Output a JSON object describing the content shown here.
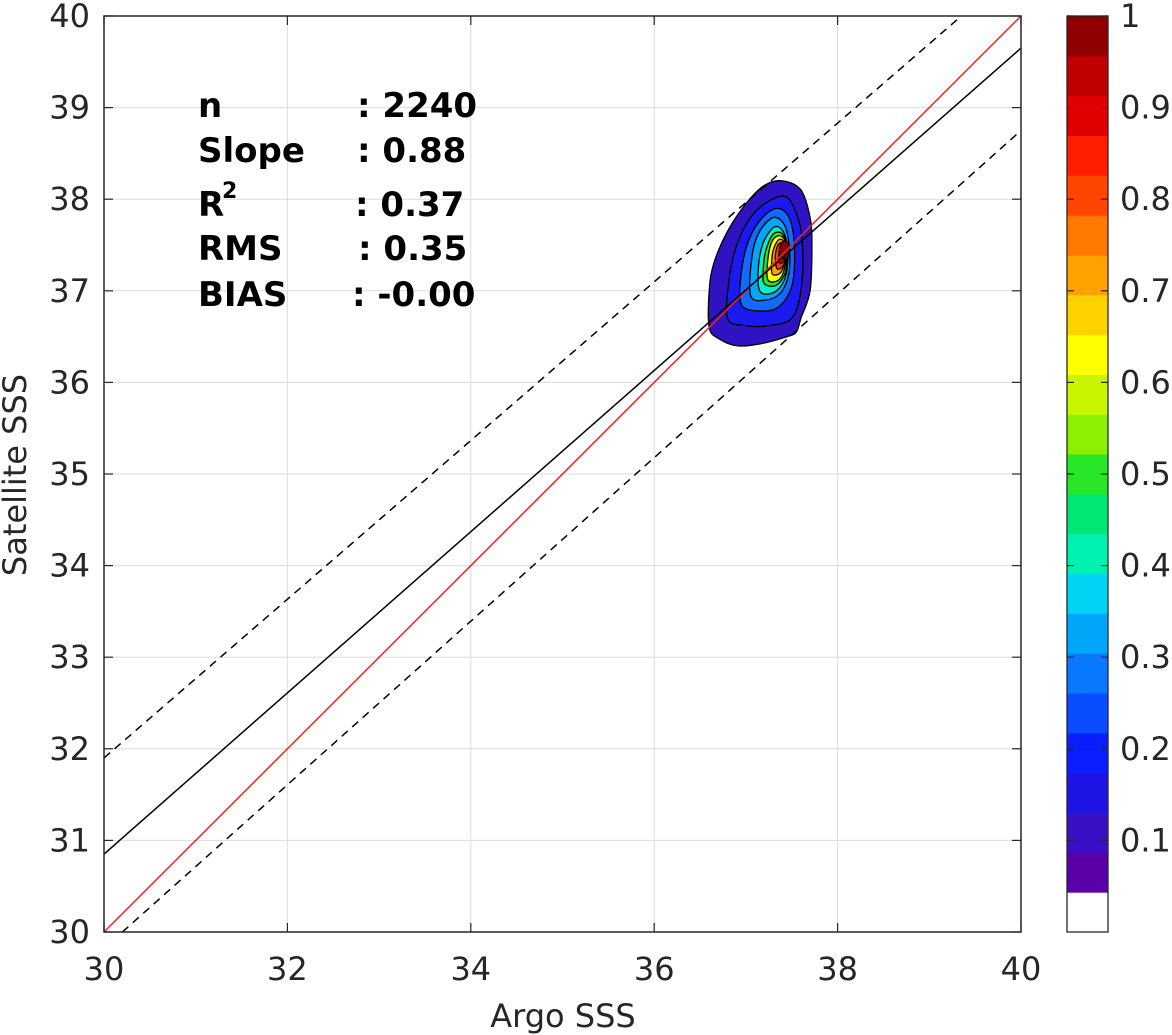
{
  "chart_data": {
    "type": "density-scatter",
    "xlabel": "Argo SSS",
    "ylabel": "Satellite SSS",
    "xlim": [
      30,
      40
    ],
    "ylim": [
      30,
      40
    ],
    "xticks": [
      "30",
      "32",
      "34",
      "36",
      "38",
      "40"
    ],
    "yticks": [
      "30",
      "31",
      "32",
      "33",
      "34",
      "35",
      "36",
      "37",
      "38",
      "39",
      "40"
    ],
    "grid": true,
    "stats": {
      "n_label": "n",
      "n_value": ": 2240",
      "slope_label": "Slope",
      "slope_value": ": 0.88",
      "r2_label": "R",
      "r2_sup": "2",
      "r2_value": ": 0.37",
      "rms_label": "RMS",
      "rms_value": ": 0.35",
      "bias_label": "BIAS",
      "bias_value": ": -0.00"
    },
    "lines": {
      "one_to_one": {
        "x": [
          30,
          40
        ],
        "y": [
          30,
          40
        ],
        "color": "#e8281e",
        "style": "solid"
      },
      "fit": {
        "x": [
          30,
          40
        ],
        "y": [
          30.85,
          39.65
        ],
        "color": "#000000",
        "style": "solid"
      },
      "upper_bound": {
        "x": [
          30,
          39.35
        ],
        "y": [
          31.9,
          40
        ],
        "color": "#000000",
        "style": "dashed"
      },
      "lower_bound": {
        "x": [
          30.2,
          40
        ],
        "y": [
          30,
          38.75
        ],
        "color": "#000000",
        "style": "dashed"
      }
    },
    "density": {
      "center": [
        37.4,
        37.4
      ],
      "peak": 1.0,
      "contour_levels": [
        0.05,
        0.1,
        0.2,
        0.3,
        0.4,
        0.5,
        0.6,
        0.7,
        0.8,
        0.9,
        1.0
      ],
      "contours": [
        {
          "level": 0.05,
          "color": "#2f12c2",
          "points": [
            [
              36.6,
              36.6
            ],
            [
              36.7,
              36.48
            ],
            [
              36.9,
              36.4
            ],
            [
              37.15,
              36.42
            ],
            [
              37.45,
              36.5
            ],
            [
              37.55,
              36.55
            ],
            [
              37.6,
              36.7
            ],
            [
              37.7,
              37.0
            ],
            [
              37.72,
              37.5
            ],
            [
              37.7,
              37.8
            ],
            [
              37.6,
              38.1
            ],
            [
              37.4,
              38.2
            ],
            [
              37.2,
              38.15
            ],
            [
              37.0,
              37.95
            ],
            [
              36.8,
              37.65
            ],
            [
              36.65,
              37.3
            ],
            [
              36.6,
              37.0
            ]
          ]
        },
        {
          "level": 0.1,
          "color": "#1a1af0",
          "points": [
            [
              36.8,
              36.7
            ],
            [
              37.0,
              36.62
            ],
            [
              37.25,
              36.62
            ],
            [
              37.5,
              36.7
            ],
            [
              37.6,
              37.0
            ],
            [
              37.62,
              37.45
            ],
            [
              37.58,
              37.75
            ],
            [
              37.45,
              38.02
            ],
            [
              37.25,
              37.98
            ],
            [
              37.05,
              37.8
            ],
            [
              36.9,
              37.5
            ],
            [
              36.82,
              37.15
            ]
          ]
        },
        {
          "level": 0.2,
          "color": "#1169ff",
          "points": [
            [
              36.95,
              36.85
            ],
            [
              37.15,
              36.78
            ],
            [
              37.35,
              36.82
            ],
            [
              37.5,
              37.05
            ],
            [
              37.53,
              37.45
            ],
            [
              37.48,
              37.78
            ],
            [
              37.35,
              37.9
            ],
            [
              37.18,
              37.8
            ],
            [
              37.03,
              37.55
            ],
            [
              36.95,
              37.2
            ]
          ]
        },
        {
          "level": 0.3,
          "color": "#00a6f7",
          "points": [
            [
              37.05,
              36.95
            ],
            [
              37.22,
              36.9
            ],
            [
              37.38,
              36.98
            ],
            [
              37.47,
              37.2
            ],
            [
              37.47,
              37.5
            ],
            [
              37.42,
              37.72
            ],
            [
              37.3,
              37.8
            ],
            [
              37.15,
              37.65
            ],
            [
              37.07,
              37.4
            ]
          ]
        },
        {
          "level": 0.4,
          "color": "#00f2c8",
          "points": [
            [
              37.15,
              37.0
            ],
            [
              37.3,
              36.98
            ],
            [
              37.42,
              37.12
            ],
            [
              37.46,
              37.38
            ],
            [
              37.42,
              37.62
            ],
            [
              37.32,
              37.7
            ],
            [
              37.2,
              37.55
            ],
            [
              37.14,
              37.3
            ]
          ]
        },
        {
          "level": 0.5,
          "color": "#28e628",
          "points": [
            [
              37.2,
              37.08
            ],
            [
              37.33,
              37.06
            ],
            [
              37.43,
              37.2
            ],
            [
              37.45,
              37.45
            ],
            [
              37.4,
              37.62
            ],
            [
              37.3,
              37.62
            ],
            [
              37.22,
              37.45
            ],
            [
              37.19,
              37.25
            ]
          ]
        },
        {
          "level": 0.6,
          "color": "#ffff00",
          "points": [
            [
              37.24,
              37.12
            ],
            [
              37.36,
              37.12
            ],
            [
              37.43,
              37.28
            ],
            [
              37.44,
              37.5
            ],
            [
              37.38,
              37.6
            ],
            [
              37.29,
              37.55
            ],
            [
              37.24,
              37.35
            ]
          ]
        },
        {
          "level": 0.7,
          "color": "#ffa200",
          "points": [
            [
              37.29,
              37.18
            ],
            [
              37.38,
              37.2
            ],
            [
              37.43,
              37.35
            ],
            [
              37.42,
              37.52
            ],
            [
              37.36,
              37.56
            ],
            [
              37.3,
              37.45
            ],
            [
              37.28,
              37.3
            ]
          ]
        },
        {
          "level": 0.8,
          "color": "#ff3c00",
          "points": [
            [
              37.34,
              37.24
            ],
            [
              37.41,
              37.28
            ],
            [
              37.43,
              37.42
            ],
            [
              37.4,
              37.52
            ],
            [
              37.35,
              37.5
            ],
            [
              37.32,
              37.38
            ]
          ]
        },
        {
          "level": 0.9,
          "color": "#d40000",
          "points": [
            [
              37.37,
              37.3
            ],
            [
              37.42,
              37.34
            ],
            [
              37.42,
              37.45
            ],
            [
              37.38,
              37.48
            ],
            [
              37.36,
              37.4
            ]
          ]
        }
      ]
    },
    "colorbar": {
      "ticks": [
        "0.1",
        "0.2",
        "0.3",
        "0.4",
        "0.5",
        "0.6",
        "0.7",
        "0.8",
        "0.9",
        "1"
      ],
      "tick_values": [
        0.1,
        0.2,
        0.3,
        0.4,
        0.5,
        0.6,
        0.7,
        0.8,
        0.9,
        1.0
      ],
      "range": [
        0,
        1
      ],
      "colors": [
        "#ffffff",
        "#5a00a8",
        "#3b0fc4",
        "#1e14e6",
        "#0a1eff",
        "#0a4cff",
        "#0a78ff",
        "#00a6f7",
        "#00d4f5",
        "#00f2b0",
        "#00e873",
        "#28e628",
        "#8cf000",
        "#c8f500",
        "#ffff00",
        "#ffd200",
        "#ffa200",
        "#ff7800",
        "#ff4600",
        "#ff1e00",
        "#e00000",
        "#c00000",
        "#900000"
      ]
    }
  }
}
